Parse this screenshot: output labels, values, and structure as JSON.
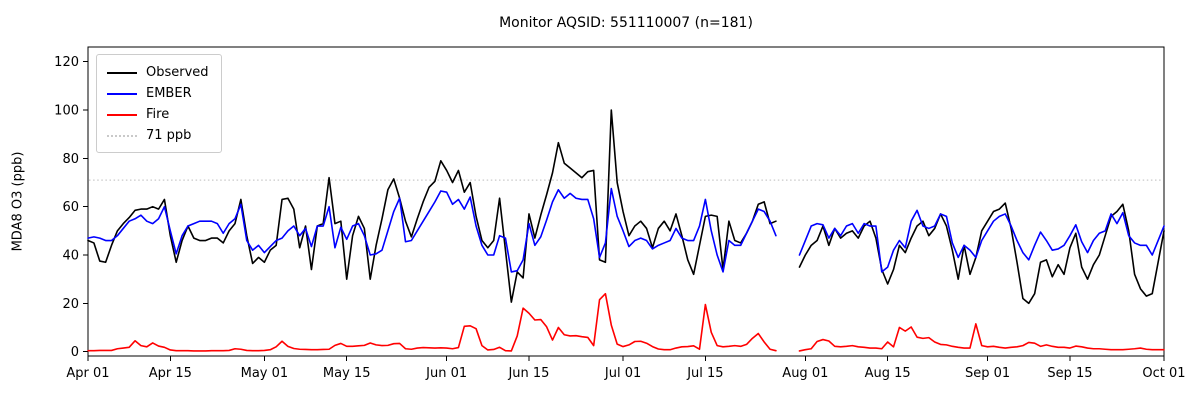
{
  "chart_data": {
    "type": "line",
    "title": "Monitor AQSID: 551110007 (n=181)",
    "xlabel": "",
    "ylabel": "MDA8 O3 (ppb)",
    "ylim": [
      -1.8,
      126.1
    ],
    "yticks": [
      0,
      20,
      40,
      60,
      80,
      100,
      120
    ],
    "xtick_labels": [
      "Apr 01",
      "Apr 15",
      "May 01",
      "May 15",
      "Jun 01",
      "Jun 15",
      "Jul 01",
      "Jul 15",
      "Aug 01",
      "Aug 15",
      "Sep 01",
      "Sep 15",
      "Oct 01"
    ],
    "xtick_days": [
      0,
      14,
      30,
      44,
      61,
      75,
      91,
      105,
      122,
      136,
      153,
      167,
      183
    ],
    "x_unit": "daily values, day index 0 = Apr 01, day 183 = Oct 01 (nulls = missing days Jul 28-30)",
    "x_days_total": 183,
    "grid": false,
    "legend_position": "upper-left",
    "threshold": {
      "label": "71 ppb",
      "value": 71,
      "color": "#c9c9c9",
      "style": "dotted"
    },
    "series": [
      {
        "name": "Observed",
        "color": "#000000",
        "values": [
          46,
          45,
          37.5,
          37,
          44,
          50,
          53,
          55.5,
          58.5,
          59,
          59,
          60,
          59,
          63,
          48,
          37,
          46,
          52,
          47,
          46,
          46,
          47,
          47,
          45,
          50,
          53,
          63,
          48,
          36.5,
          39,
          37,
          42,
          44,
          63,
          63.5,
          59,
          43,
          52,
          34,
          52,
          53,
          72,
          53,
          54,
          30,
          48,
          56,
          51,
          30,
          44,
          55,
          67,
          71.5,
          63.5,
          54,
          47.5,
          55,
          62,
          68,
          70.5,
          79,
          75,
          70,
          75,
          66,
          70,
          56,
          46,
          43,
          46,
          63.5,
          42,
          20.5,
          33,
          30.5,
          57,
          47,
          56.5,
          65,
          74,
          86.5,
          78,
          76,
          74,
          72,
          74.5,
          75,
          38,
          37,
          100,
          70,
          58,
          48,
          52,
          54,
          51,
          43,
          51,
          54,
          50,
          57,
          48,
          38,
          32,
          44,
          56,
          56.5,
          56,
          34,
          54,
          46,
          45,
          49,
          54,
          61,
          62,
          53,
          54,
          null,
          null,
          null,
          35,
          40,
          44,
          46,
          52,
          44,
          51,
          47,
          49,
          50,
          47,
          52,
          54,
          47,
          34,
          28,
          34,
          44,
          41,
          47,
          52,
          54,
          48,
          51,
          57,
          52,
          42,
          30,
          44,
          32,
          39,
          50,
          54,
          58,
          59,
          61.5,
          51,
          37,
          22,
          20,
          24,
          37,
          38,
          31,
          36,
          32,
          43,
          49,
          35,
          30,
          36,
          40,
          48,
          56,
          58,
          61,
          50,
          32,
          26,
          23,
          24,
          37,
          50
        ]
      },
      {
        "name": "EMBER",
        "color": "#0000ff",
        "values": [
          47,
          47.5,
          47,
          46,
          46,
          48,
          51,
          54,
          55,
          56.5,
          54,
          53,
          55,
          60,
          50,
          40.5,
          48,
          52,
          53,
          54,
          54,
          54,
          53,
          49,
          53,
          55,
          61,
          46,
          42,
          44,
          41,
          43.5,
          46,
          47,
          50,
          52,
          48,
          51,
          43.5,
          52,
          52,
          60,
          43,
          51.5,
          46.5,
          52,
          53,
          48,
          40,
          40.5,
          42,
          50,
          58,
          63.5,
          45.5,
          46,
          50,
          54,
          58,
          62,
          66.5,
          66,
          61,
          63,
          59,
          64,
          52,
          44,
          40,
          40,
          48,
          47,
          33,
          33.5,
          38,
          53,
          44,
          47.5,
          54.5,
          62,
          67,
          63.5,
          65.5,
          63.5,
          63,
          63,
          55,
          39,
          45,
          67.5,
          56,
          50,
          43.5,
          46,
          47,
          46,
          42.5,
          44,
          45,
          46,
          51,
          47,
          46,
          46,
          52,
          63,
          50,
          40,
          33,
          46,
          44,
          44,
          49,
          54,
          59,
          58,
          54,
          48,
          null,
          null,
          null,
          40,
          46,
          52,
          53,
          52.5,
          47,
          51,
          48,
          52,
          53,
          49,
          53,
          52,
          52,
          33,
          35,
          42,
          46,
          43,
          54,
          58.5,
          52,
          51,
          52,
          57,
          56,
          45,
          39,
          44,
          42,
          39,
          46,
          50,
          54,
          56,
          57,
          52,
          46,
          41,
          38,
          44,
          49.5,
          46,
          42,
          42.5,
          44,
          48,
          52.5,
          45.5,
          41,
          46,
          49,
          50,
          57,
          53,
          57.5,
          48,
          45,
          44,
          44,
          40,
          46,
          52
        ]
      },
      {
        "name": "Fire",
        "color": "#ff0000",
        "values": [
          0.4,
          0.4,
          0.5,
          0.5,
          0.5,
          1.2,
          1.5,
          1.8,
          4.5,
          2.5,
          2,
          3.6,
          2.3,
          1.8,
          0.7,
          0.4,
          0.4,
          0.4,
          0.3,
          0.3,
          0.3,
          0.4,
          0.4,
          0.4,
          0.5,
          1.2,
          1,
          0.5,
          0.4,
          0.4,
          0.5,
          0.8,
          2,
          4.3,
          2.2,
          1.3,
          1,
          0.9,
          0.8,
          0.8,
          0.9,
          1,
          2.6,
          3.4,
          2.2,
          2.2,
          2.4,
          2.6,
          3.6,
          2.8,
          2.5,
          2.6,
          3.3,
          3.4,
          1.2,
          1,
          1.5,
          1.7,
          1.6,
          1.5,
          1.6,
          1.5,
          1.2,
          1.7,
          10.5,
          10.7,
          9.5,
          2.5,
          0.7,
          0.9,
          1.8,
          0.4,
          0.3,
          6.5,
          18,
          15.9,
          13.1,
          13.3,
          10.3,
          4.8,
          10,
          7,
          6.5,
          6.6,
          6.2,
          5.9,
          2.5,
          21.5,
          24,
          11,
          3.1,
          2.1,
          2.8,
          4.2,
          4.3,
          3.5,
          2.1,
          1.1,
          0.8,
          0.8,
          1.5,
          2,
          2.1,
          2.4,
          1,
          19.5,
          8,
          2.5,
          2,
          2.2,
          2.5,
          2.2,
          3,
          5.5,
          7.5,
          4,
          1,
          0.4,
          null,
          null,
          null,
          0.3,
          0.8,
          1.2,
          4.2,
          5,
          4.4,
          2.2,
          2,
          2.2,
          2.5,
          2,
          1.8,
          1.5,
          1.5,
          1.2,
          4,
          2,
          10,
          8.5,
          10.2,
          6,
          5.5,
          5.8,
          4,
          3,
          2.8,
          2.2,
          1.8,
          1.5,
          1.5,
          11.5,
          2.5,
          2,
          2.2,
          1.8,
          1.5,
          1.8,
          2,
          2.5,
          3.8,
          3.5,
          2.2,
          2.8,
          2.2,
          1.8,
          1.8,
          1.5,
          2.3,
          2,
          1.5,
          1.2,
          1.2,
          1,
          0.8,
          0.8,
          0.8,
          1,
          1.2,
          1.5,
          1,
          0.8,
          0.8,
          0.8
        ]
      }
    ]
  },
  "legend": {
    "items": [
      {
        "label": "Observed",
        "color": "#000000",
        "style": "solid"
      },
      {
        "label": "EMBER",
        "color": "#0000ff",
        "style": "solid"
      },
      {
        "label": "Fire",
        "color": "#ff0000",
        "style": "solid"
      },
      {
        "label": "71 ppb",
        "color": "#c9c9c9",
        "style": "dotted"
      }
    ]
  }
}
